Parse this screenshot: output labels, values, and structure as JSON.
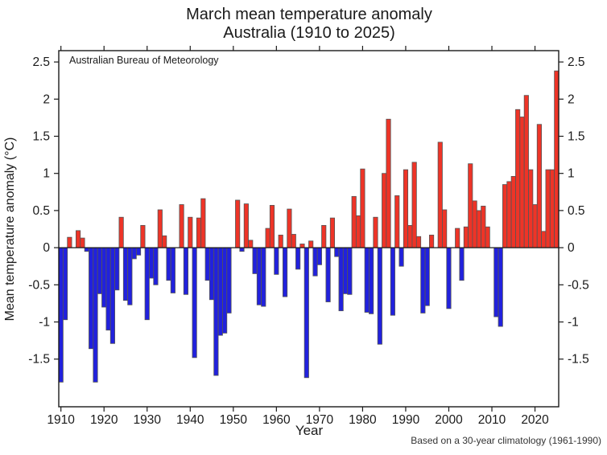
{
  "header": {
    "title_line1": "March mean temperature anomaly",
    "title_line2": "Australia (1910 to 2025)"
  },
  "annotation": "Australian Bureau of Meteorology",
  "footnote": "Based on a 30-year climatology (1961-1990)",
  "chart_data": {
    "type": "bar",
    "title": "March mean temperature anomaly",
    "subtitle": "Australia (1910 to 2025)",
    "xlabel": "Year",
    "ylabel": "Mean temperature anomaly (°C)",
    "grid": false,
    "legend_position": "none",
    "ylim": [
      -2.15,
      2.65
    ],
    "yticks": [
      -1.5,
      -1,
      -0.5,
      0,
      0.5,
      1,
      1.5,
      2,
      2.5
    ],
    "ytick_labels": [
      "-1.5",
      "-1",
      "-0.5",
      "0",
      "0.5",
      "1",
      "1.5",
      "2",
      "2.5"
    ],
    "xticks": [
      1910,
      1920,
      1930,
      1940,
      1950,
      1960,
      1970,
      1980,
      1990,
      2000,
      2010,
      2020
    ],
    "positive_color": "#ee3427",
    "negative_color": "#2121dd",
    "bar_outline_color": "#555555",
    "x_start": 1910,
    "x_end": 2025,
    "years": [
      1910,
      1911,
      1912,
      1913,
      1914,
      1915,
      1916,
      1917,
      1918,
      1919,
      1920,
      1921,
      1922,
      1923,
      1924,
      1925,
      1926,
      1927,
      1928,
      1929,
      1930,
      1931,
      1932,
      1933,
      1934,
      1935,
      1936,
      1937,
      1938,
      1939,
      1940,
      1941,
      1942,
      1943,
      1944,
      1945,
      1946,
      1947,
      1948,
      1949,
      1950,
      1951,
      1952,
      1953,
      1954,
      1955,
      1956,
      1957,
      1958,
      1959,
      1960,
      1961,
      1962,
      1963,
      1964,
      1965,
      1966,
      1967,
      1968,
      1969,
      1970,
      1971,
      1972,
      1973,
      1974,
      1975,
      1976,
      1977,
      1978,
      1979,
      1980,
      1981,
      1982,
      1983,
      1984,
      1985,
      1986,
      1987,
      1988,
      1989,
      1990,
      1991,
      1992,
      1993,
      1994,
      1995,
      1996,
      1997,
      1998,
      1999,
      2000,
      2001,
      2002,
      2003,
      2004,
      2005,
      2006,
      2007,
      2008,
      2009,
      2010,
      2011,
      2012,
      2013,
      2014,
      2015,
      2016,
      2017,
      2018,
      2019,
      2020,
      2021,
      2022,
      2023,
      2024,
      2025
    ],
    "values": [
      -1.81,
      -0.97,
      0.14,
      0.0,
      0.23,
      0.13,
      -0.05,
      -1.36,
      -1.81,
      -0.62,
      -0.8,
      -1.11,
      -1.29,
      -0.57,
      0.41,
      -0.71,
      -0.77,
      -0.15,
      -0.1,
      0.3,
      -0.97,
      -0.41,
      -0.5,
      0.51,
      0.16,
      -0.44,
      -0.61,
      0.0,
      0.58,
      -0.63,
      0.41,
      -1.48,
      0.4,
      0.66,
      -0.44,
      -0.7,
      -1.72,
      -1.18,
      -1.15,
      -0.88,
      0.0,
      0.64,
      -0.05,
      0.59,
      0.1,
      -0.35,
      -0.77,
      -0.79,
      0.26,
      0.57,
      -0.36,
      0.17,
      -0.66,
      0.52,
      0.18,
      -0.29,
      0.05,
      -1.75,
      0.09,
      -0.38,
      -0.23,
      0.3,
      -0.73,
      0.4,
      -0.12,
      -0.85,
      -0.62,
      -0.63,
      0.69,
      0.43,
      1.06,
      -0.87,
      -0.89,
      0.41,
      -1.3,
      1.0,
      1.73,
      -0.91,
      0.7,
      -0.25,
      1.05,
      0.3,
      1.15,
      0.15,
      -0.88,
      -0.78,
      0.17,
      0.0,
      1.42,
      0.51,
      -0.82,
      0.0,
      0.26,
      -0.44,
      0.28,
      1.13,
      0.63,
      0.5,
      0.56,
      0.28,
      0.0,
      -0.93,
      -1.06,
      0.85,
      0.89,
      0.96,
      1.86,
      1.76,
      2.05,
      1.05,
      0.58,
      1.66,
      0.22,
      1.05,
      1.05,
      2.38
    ]
  }
}
